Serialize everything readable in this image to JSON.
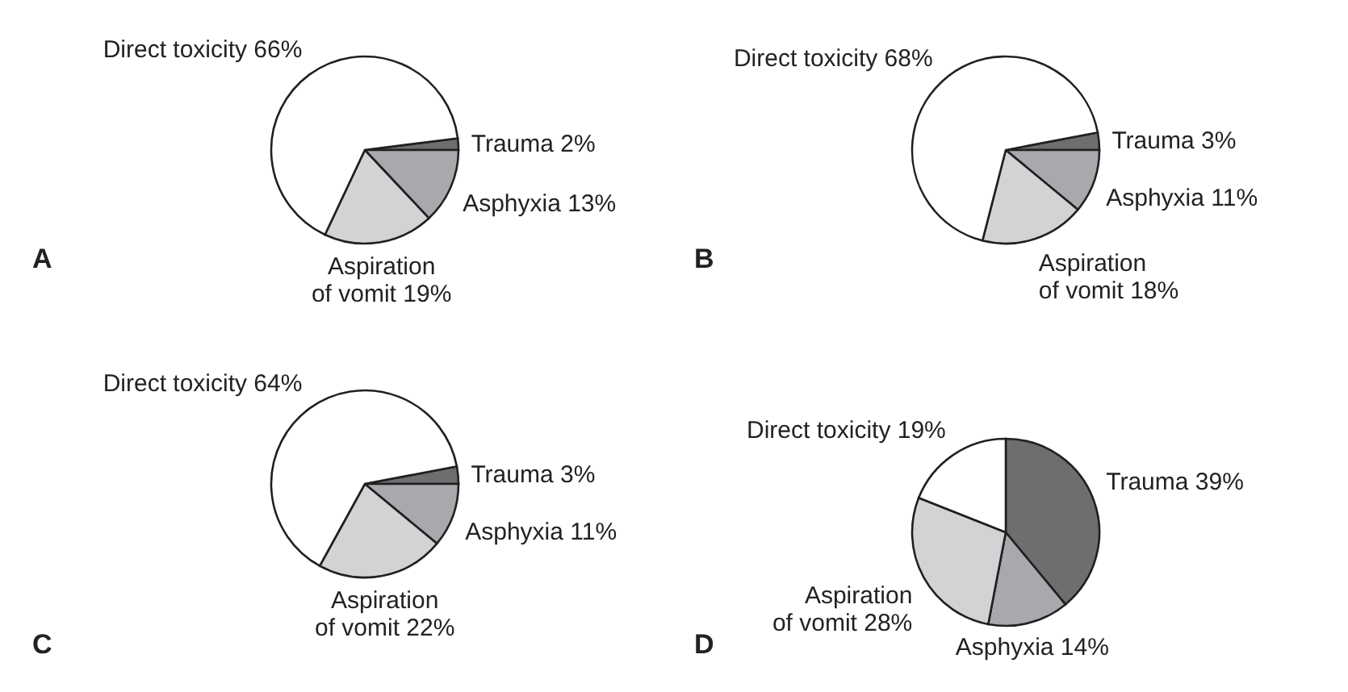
{
  "chart_data": [
    {
      "type": "pie",
      "title": "A",
      "categories": [
        "Trauma",
        "Asphyxia",
        "Aspiration of vomit",
        "Direct toxicity"
      ],
      "values": [
        2,
        13,
        19,
        66
      ],
      "value_labels": [
        "2%",
        "13%",
        "19%",
        "66%"
      ],
      "colors": [
        "#6d6e70",
        "#a7a9ac",
        "#d1d3d4",
        "#ffffff"
      ]
    },
    {
      "type": "pie",
      "title": "B",
      "categories": [
        "Trauma",
        "Asphyxia",
        "Aspiration of vomit",
        "Direct toxicity"
      ],
      "values": [
        3,
        11,
        18,
        68
      ],
      "value_labels": [
        "3%",
        "11%",
        "18%",
        "68%"
      ],
      "colors": [
        "#6d6e70",
        "#a7a9ac",
        "#d1d3d4",
        "#ffffff"
      ]
    },
    {
      "type": "pie",
      "title": "C",
      "categories": [
        "Trauma",
        "Asphyxia",
        "Aspiration of vomit",
        "Direct toxicity"
      ],
      "values": [
        3,
        11,
        22,
        64
      ],
      "value_labels": [
        "3%",
        "11%",
        "22%",
        "64%"
      ],
      "colors": [
        "#6d6e70",
        "#a7a9ac",
        "#d1d3d4",
        "#ffffff"
      ]
    },
    {
      "type": "pie",
      "title": "D",
      "categories": [
        "Trauma",
        "Asphyxia",
        "Aspiration of vomit",
        "Direct toxicity"
      ],
      "values": [
        39,
        14,
        28,
        19
      ],
      "value_labels": [
        "39%",
        "14%",
        "28%",
        "19%"
      ],
      "colors": [
        "#6d6e70",
        "#a7a9ac",
        "#d1d3d4",
        "#ffffff"
      ]
    }
  ]
}
